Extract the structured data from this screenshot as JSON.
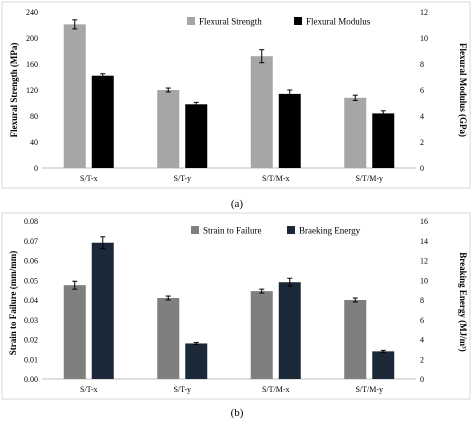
{
  "chart_data": [
    {
      "type": "bar",
      "caption": "(a)",
      "categories": [
        "S/T-x",
        "S/T-y",
        "S/T/M-x",
        "S/T/M-y"
      ],
      "ylabel": "Flexural Strength (MPa)",
      "y2label": "Flexural Modulus (GPa)",
      "ylim": [
        0,
        240
      ],
      "yticks": [
        0,
        40,
        80,
        120,
        160,
        200,
        240
      ],
      "y2lim": [
        0,
        12
      ],
      "y2ticks": [
        0,
        2,
        4,
        6,
        8,
        10,
        12
      ],
      "grid": false,
      "legend_position": "top",
      "series": [
        {
          "name": "Flexural Strength",
          "axis": "left",
          "color": "#a6a6a6",
          "values": [
            221,
            120,
            172,
            108
          ],
          "errors": [
            7,
            3,
            10,
            4
          ]
        },
        {
          "name": "Flexural Modulus",
          "axis": "right",
          "color": "#000000",
          "values": [
            7.1,
            4.9,
            5.7,
            4.2
          ],
          "errors": [
            0.15,
            0.15,
            0.3,
            0.2
          ]
        }
      ]
    },
    {
      "type": "bar",
      "caption": "(b)",
      "categories": [
        "S/T-x",
        "S/T-y",
        "S/T/M-x",
        "S/T/M-y"
      ],
      "ylabel": "Strain to Failure (mm/mm)",
      "y2label": "Breaking Energy (MJ/m³)",
      "ylim": [
        0,
        0.08
      ],
      "yticks": [
        "0.00",
        "0.01",
        "0.02",
        "0.03",
        "0.04",
        "0.05",
        "0.06",
        "0.07",
        "0.08"
      ],
      "y2lim": [
        0,
        16
      ],
      "y2ticks": [
        0,
        2,
        4,
        6,
        8,
        10,
        12,
        14,
        16
      ],
      "grid": false,
      "legend_position": "top",
      "series": [
        {
          "name": "Strain to Failure",
          "axis": "left",
          "color": "#7f7f7f",
          "values": [
            0.0475,
            0.041,
            0.0445,
            0.04
          ],
          "errors": [
            0.002,
            0.001,
            0.001,
            0.001
          ]
        },
        {
          "name": "Braeking Energy",
          "axis": "right",
          "color": "#1b2838",
          "values": [
            13.8,
            3.6,
            9.8,
            2.8
          ],
          "errors": [
            0.6,
            0.1,
            0.4,
            0.1
          ]
        }
      ]
    }
  ]
}
